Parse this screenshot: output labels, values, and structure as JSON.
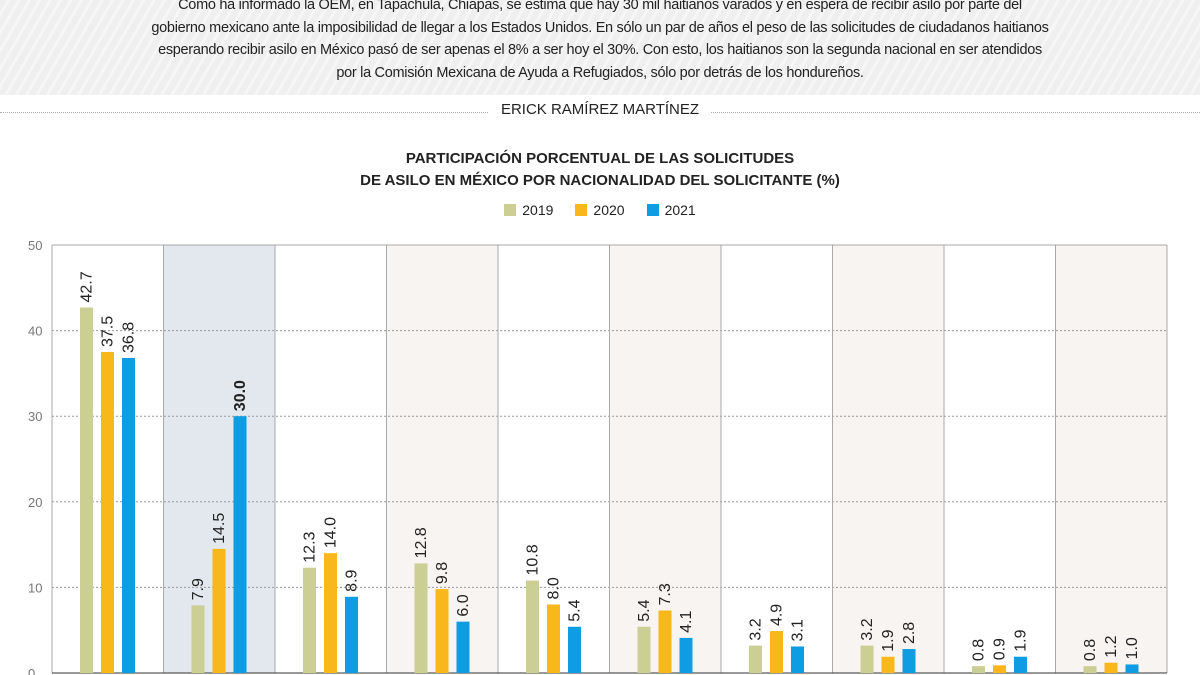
{
  "intro_text": "Como ha informado la OEM, en Tapachula, Chiapas, se estima que hay 30 mil haitianos varados y en espera de recibir asilo por parte del gobierno mexicano ante la imposibilidad de llegar a los Estados Unidos. En sólo un par de años el peso de las solicitudes de ciudadanos haitianos esperando recibir asilo en México pasó de ser apenas el 8% a ser hoy el 30%. Con esto, los haitianos son la segunda nacional en ser atendidos por la Comisión Mexicana de Ayuda a Refugiados, sólo por detrás de los hondureños.",
  "author": "ERICK RAMÍREZ MARTÍNEZ",
  "chart_data": {
    "type": "bar",
    "title_line1": "PARTICIPACIÓN PORCENTUAL DE LAS SOLICITUDES",
    "title_line2": "DE ASILO EN MÉXICO POR NACIONALIDAD DEL SOLICITANTE (%)",
    "ylim": [
      0,
      50
    ],
    "yticks": [
      "0",
      "10",
      "20",
      "30",
      "40",
      "50"
    ],
    "grid": true,
    "legend_placement": "top-center",
    "highlight_group": 1,
    "series": [
      {
        "name": "2019",
        "color": "#cccf94",
        "values": [
          42.7,
          7.9,
          12.3,
          12.8,
          10.8,
          5.4,
          3.2,
          3.2,
          0.8,
          0.8
        ],
        "labels": [
          "42.7",
          "7.9",
          "12.3",
          "12.8",
          "10.8",
          "5.4",
          "3.2",
          "3.2",
          "0.8",
          "0.8"
        ]
      },
      {
        "name": "2020",
        "color": "#f8b81c",
        "values": [
          37.5,
          14.5,
          14.0,
          9.8,
          8.0,
          7.3,
          4.9,
          1.9,
          0.9,
          1.2
        ],
        "labels": [
          "37.5",
          "14.5",
          "14.0",
          "9.8",
          "8.0",
          "7.3",
          "4.9",
          "1.9",
          "0.9",
          "1.2"
        ]
      },
      {
        "name": "2021",
        "color": "#0e9de2",
        "values": [
          36.8,
          30.0,
          8.9,
          6.0,
          5.4,
          4.1,
          3.1,
          2.8,
          1.9,
          1.0
        ],
        "labels": [
          "36.8",
          "30.0",
          "8.9",
          "6.0",
          "5.4",
          "4.1",
          "3.1",
          "2.8",
          "1.9",
          "1.0"
        ]
      }
    ]
  }
}
